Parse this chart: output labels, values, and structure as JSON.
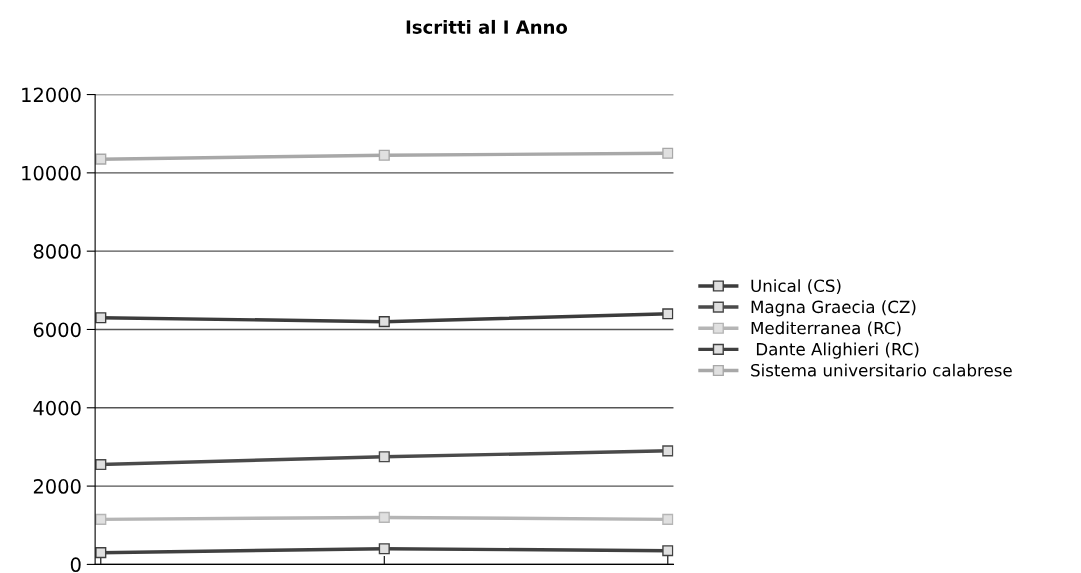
{
  "chart_data": {
    "type": "line",
    "title": "Iscritti al I Anno",
    "categories": [
      null,
      null,
      null
    ],
    "series": [
      {
        "name": "Unical (CS)",
        "color": "#3c3c3c",
        "values": [
          6300,
          6200,
          6400
        ]
      },
      {
        "name": "Magna Graecia (CZ)",
        "color": "#4a4a4a",
        "values": [
          2550,
          2750,
          2900
        ]
      },
      {
        "name": "Mediterranea (RC)",
        "color": "#b5b5b5",
        "values": [
          1150,
          1200,
          1150
        ]
      },
      {
        "name": " Dante Alighieri (RC)",
        "color": "#404040",
        "values": [
          300,
          400,
          350
        ]
      },
      {
        "name": "Sistema universitario calabrese",
        "color": "#a8a8a8",
        "values": [
          10350,
          10450,
          10500
        ]
      }
    ],
    "ylim": [
      0,
      12000
    ],
    "yticks": [
      0,
      2000,
      4000,
      6000,
      8000,
      10000,
      12000
    ],
    "grid": "y",
    "legend": "right",
    "marker": "square",
    "line_style": "solid"
  }
}
